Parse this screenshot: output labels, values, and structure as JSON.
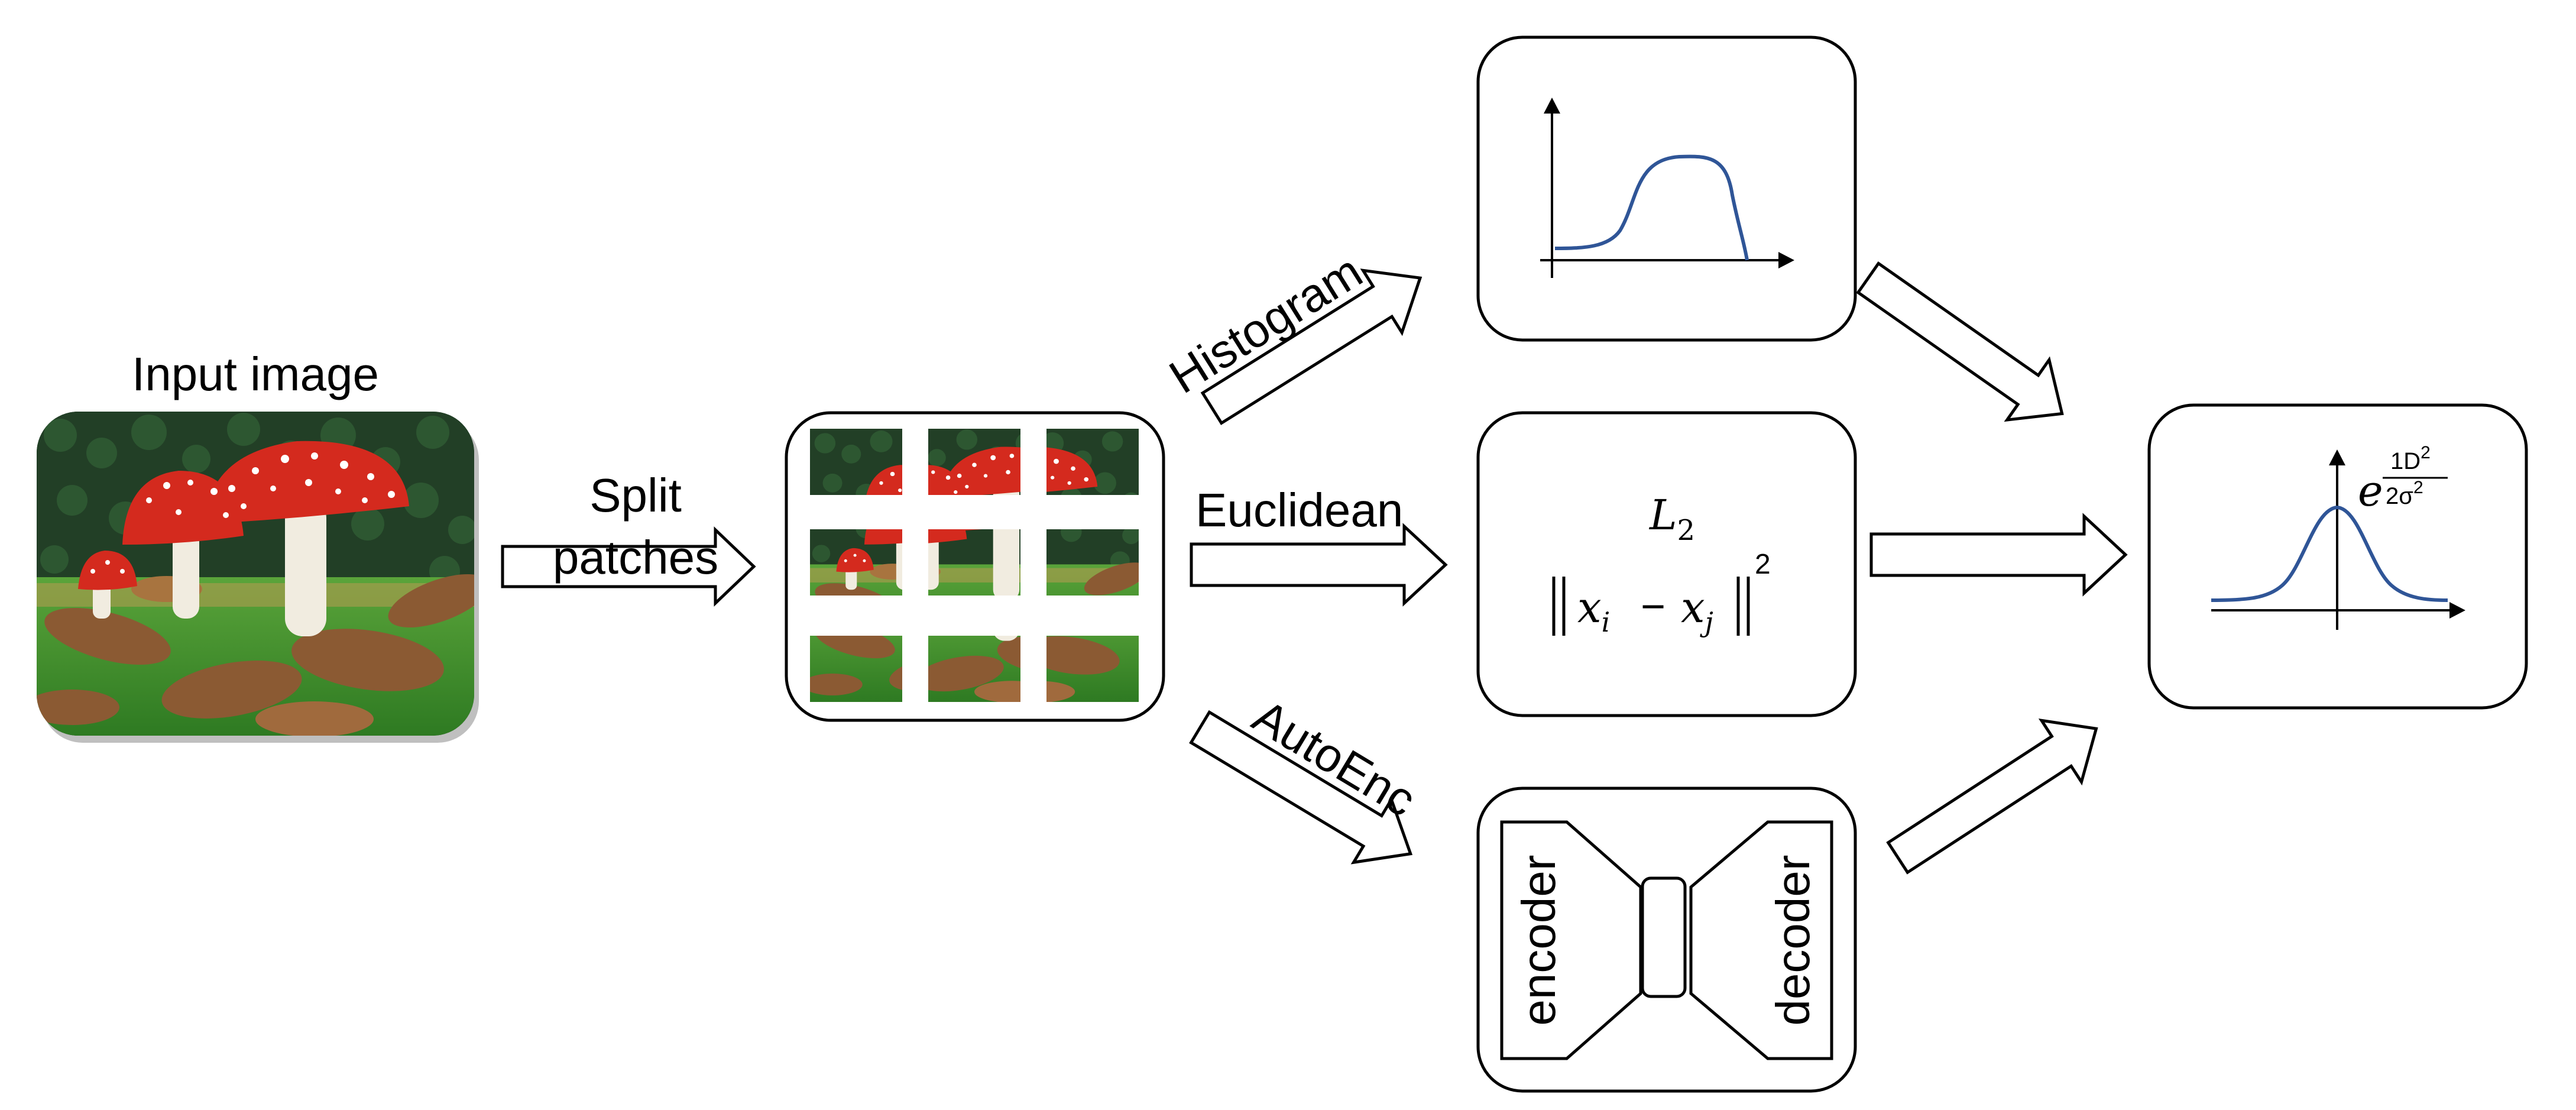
{
  "input": {
    "caption": "Input image"
  },
  "split": {
    "line1": "Split",
    "line2": "patches"
  },
  "branches": {
    "histogram": {
      "label": "Histogram"
    },
    "euclidean": {
      "label": "Euclidean",
      "formula_title": "L",
      "formula_sub": "2",
      "formula_exp": "2",
      "formula_xi": "x",
      "formula_i": "i",
      "formula_xj": "x",
      "formula_j": "j"
    },
    "autoenc": {
      "label": "AutoEnc",
      "encoder": "encoder",
      "decoder": "decoder"
    }
  },
  "output": {
    "exp_base": "e",
    "exp_num": "1D",
    "exp_num_sup": "2",
    "exp_den": "2σ",
    "exp_den_sup": "2"
  },
  "colors": {
    "curve": "#2f5597",
    "mushroom_cap": "#d42a1e",
    "grass": "#4f9a2e",
    "leaves": "#8b5a33",
    "hedge": "#1f3d24"
  }
}
